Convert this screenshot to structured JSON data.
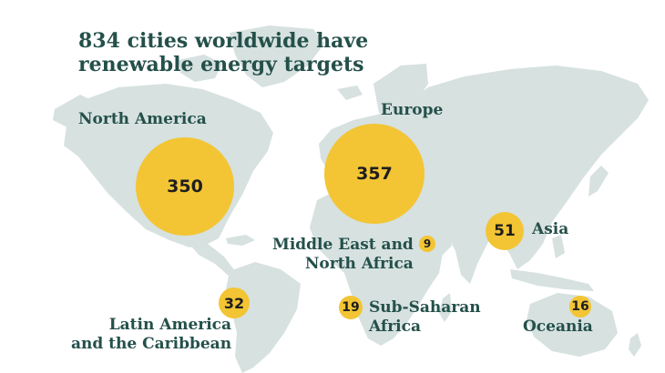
{
  "title": {
    "line1": "834 cities worldwide have",
    "line2": "renewable energy targets"
  },
  "regions": [
    {
      "id": "north-america",
      "lines": [
        "North America"
      ],
      "value": "350"
    },
    {
      "id": "europe",
      "lines": [
        "Europe"
      ],
      "value": "357"
    },
    {
      "id": "asia",
      "lines": [
        "Asia"
      ],
      "value": "51"
    },
    {
      "id": "middle-east-north-africa",
      "lines": [
        "Middle East and",
        "North Africa"
      ],
      "value": "9"
    },
    {
      "id": "latin-america-caribbean",
      "lines": [
        "Latin America",
        "and the Caribbean"
      ],
      "value": "32"
    },
    {
      "id": "sub-saharan-africa",
      "lines": [
        "Sub-Saharan",
        "Africa"
      ],
      "value": "19"
    },
    {
      "id": "oceania",
      "lines": [
        "Oceania"
      ],
      "value": "16"
    }
  ],
  "colors": {
    "land": "#d6e1e0",
    "bubble": "#f3c534",
    "text": "#24504a",
    "bubble_text": "#1e1e1e"
  }
}
